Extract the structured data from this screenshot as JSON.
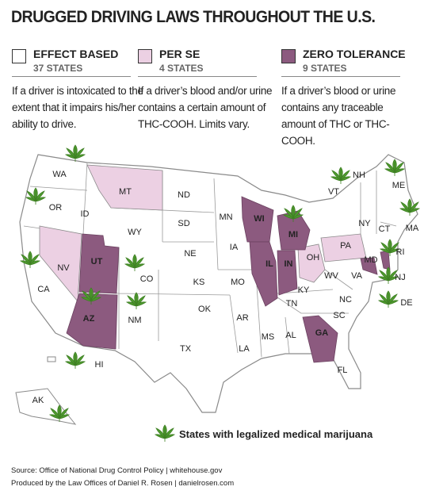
{
  "title": "DRUGGED DRIVING LAWS THROUGHOUT THE U.S.",
  "legend": [
    {
      "name": "EFFECT BASED",
      "count": "37 STATES",
      "description": "If a driver is intoxicated to the extent that it impairs his/her ability to drive."
    },
    {
      "name": "PER SE",
      "count": "4 STATES",
      "description": "If a driver’s blood and/or urine contains a certain amount of THC-COOH. Limits vary."
    },
    {
      "name": "ZERO TOLERANCE",
      "count": "9 STATES",
      "description": "If a driver’s blood or urine contains any traceable amount of THC or THC-COOH."
    }
  ],
  "states": [
    "WA",
    "OR",
    "ID",
    "MT",
    "WY",
    "ND",
    "SD",
    "MN",
    "WI",
    "MI",
    "NY",
    "VT",
    "NH",
    "ME",
    "MA",
    "CT",
    "RI",
    "NJ",
    "DE",
    "MD",
    "PA",
    "OH",
    "IN",
    "IL",
    "IA",
    "NE",
    "NV",
    "UT",
    "CO",
    "CA",
    "KS",
    "MO",
    "WV",
    "VA",
    "KY",
    "TN",
    "NC",
    "SC",
    "GA",
    "AL",
    "MS",
    "LA",
    "AR",
    "OK",
    "TX",
    "NM",
    "AZ",
    "FL",
    "HI",
    "AK"
  ],
  "marijuana_note": "States with legalized medical marijuana",
  "sources": [
    "Source: Office of National Drug Control Policy | whitehouse.gov",
    "Produced by the Law Offices of Daniel R. Rosen | danielrosen.com"
  ]
}
